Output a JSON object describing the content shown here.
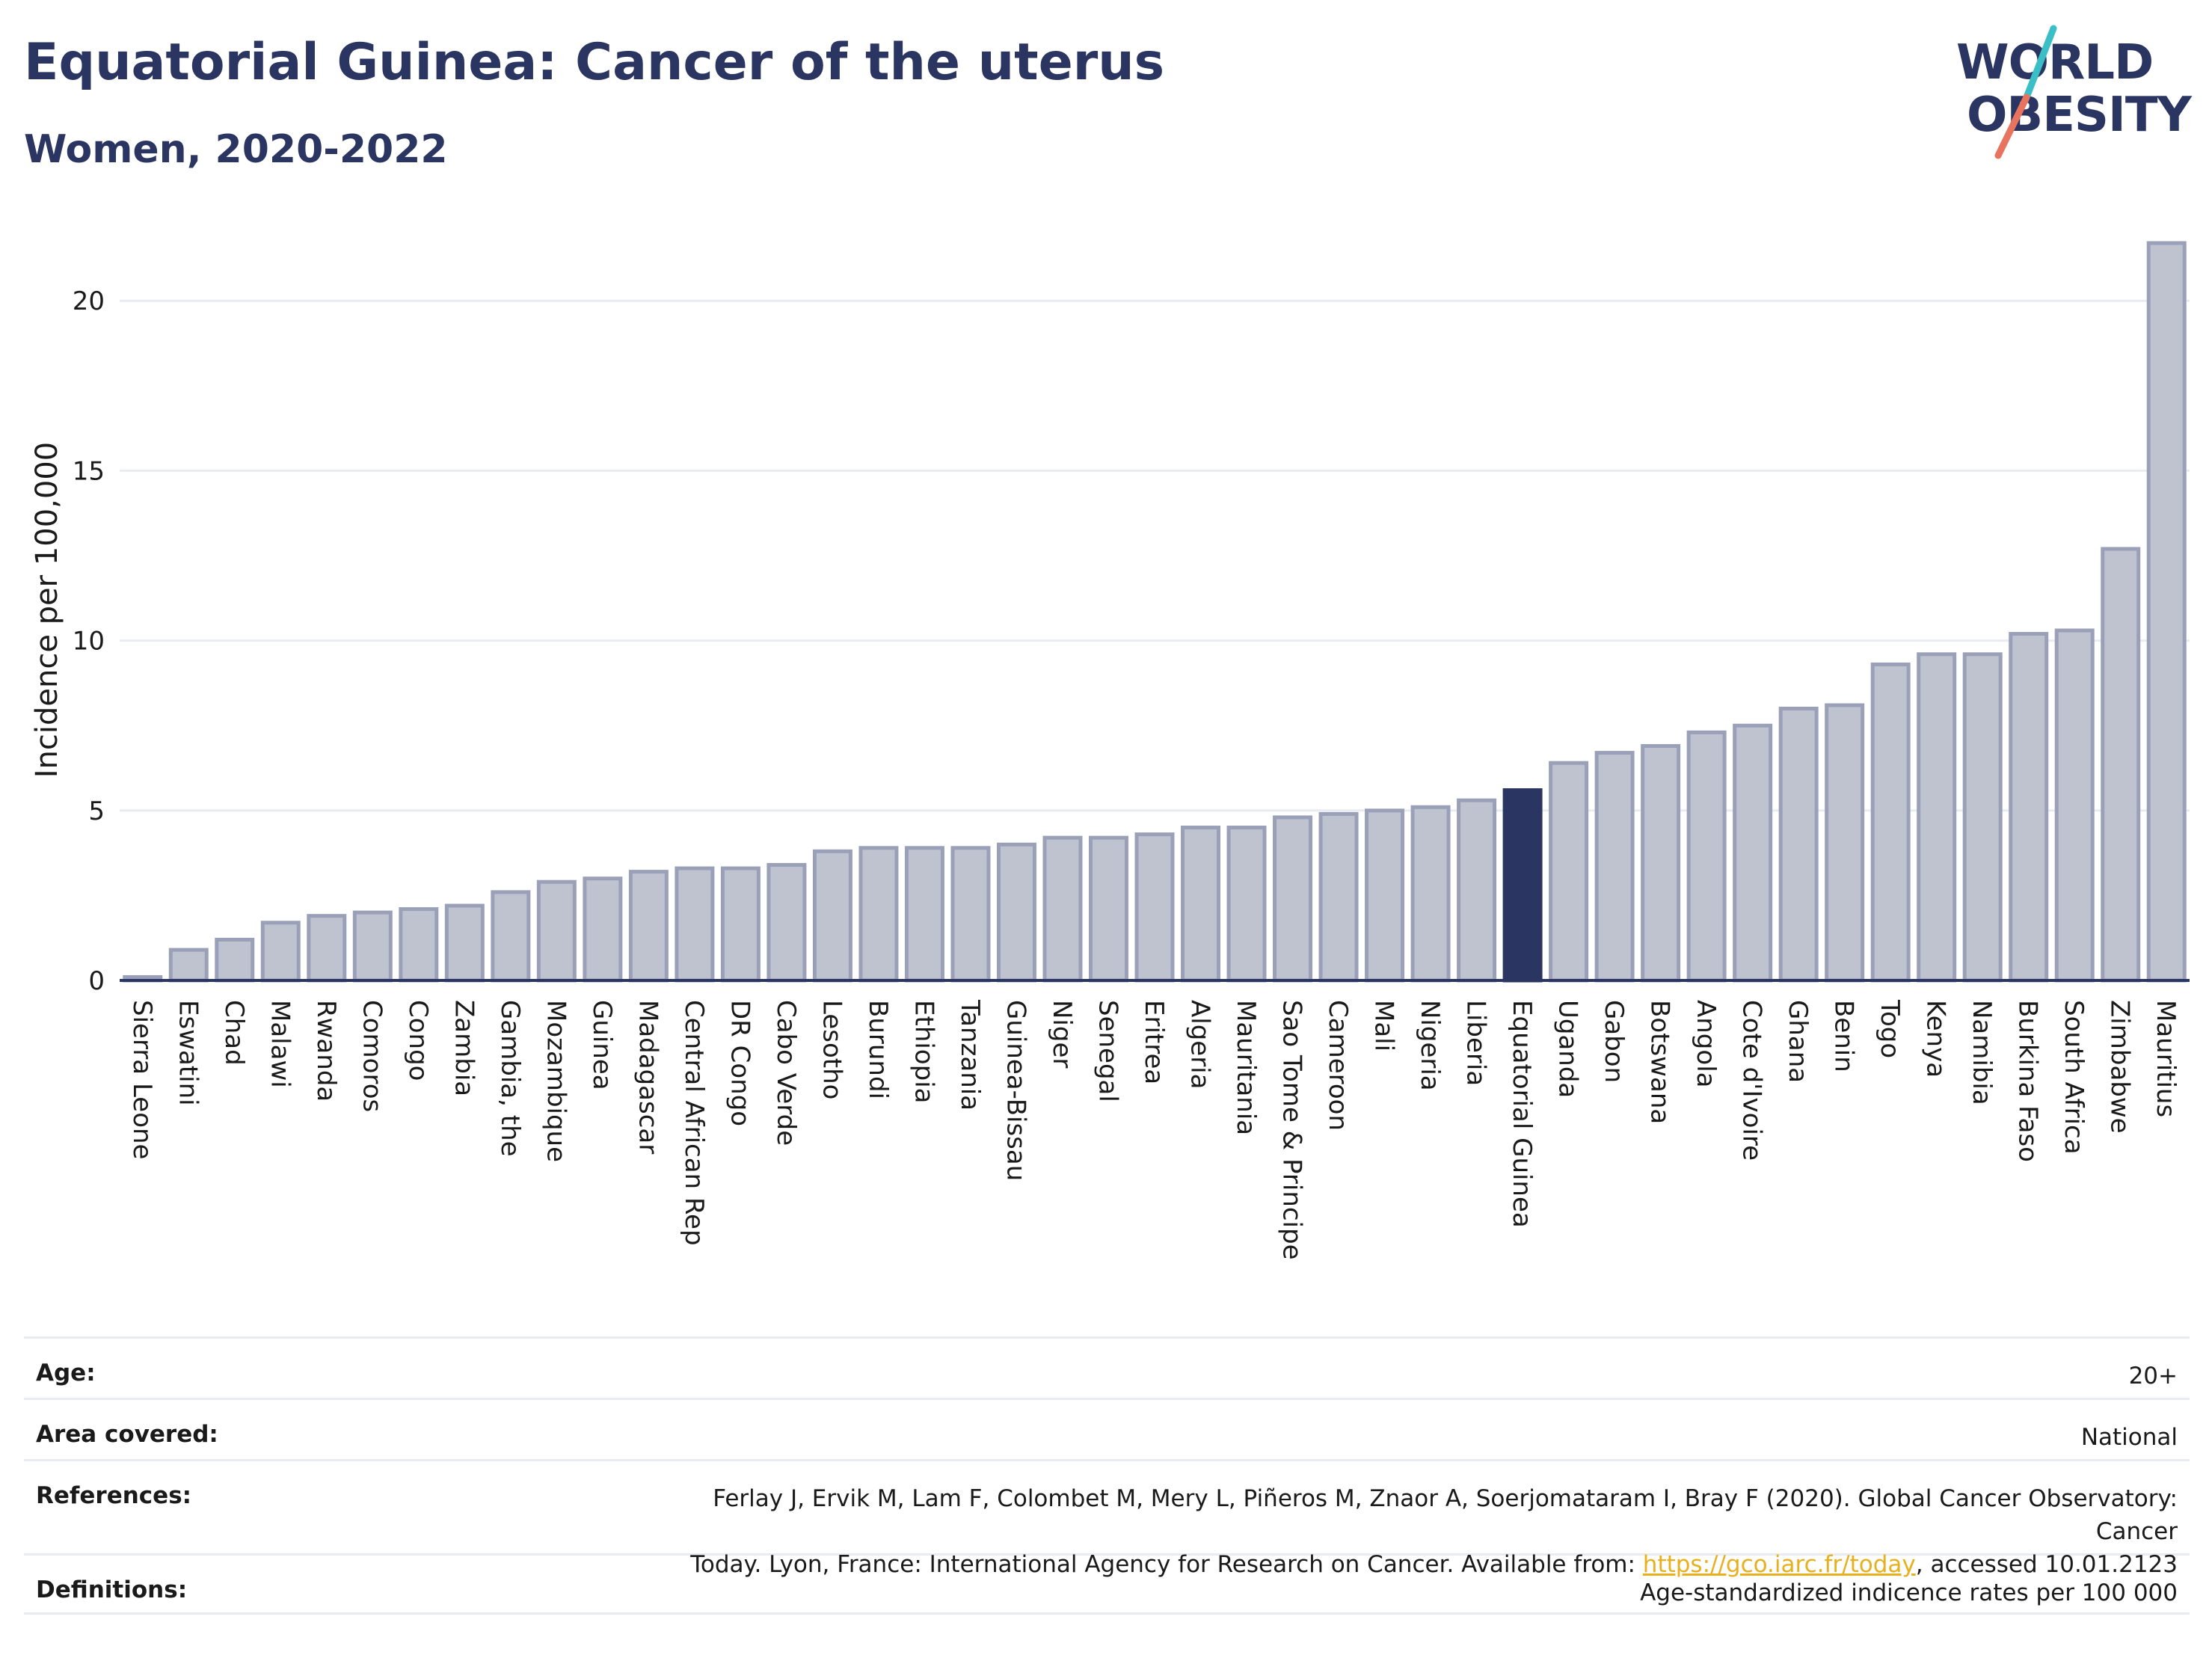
{
  "header": {
    "title": "Equatorial Guinea: Cancer of the uterus",
    "subtitle": "Women, 2020-2022"
  },
  "logo": {
    "line1": "WORLD",
    "line2": "OBESITY",
    "colors": {
      "text": "#2b3561",
      "slash_top": "#3bbfc6",
      "slash_bottom": "#e8735f"
    }
  },
  "chart_data": {
    "type": "bar",
    "ylabel": "Incidence per 100,000",
    "xlabel": "",
    "ylim": [
      0,
      22
    ],
    "yticks": [
      0,
      5,
      10,
      15,
      20
    ],
    "grid": true,
    "highlight": "Equatorial Guinea",
    "colors": {
      "bar": "#bfc3d0",
      "bar_edge": "#9aa0b8",
      "highlight": "#2b3561",
      "grid": "#e8ecf0",
      "axis": "#2b3561"
    },
    "categories": [
      "Sierra Leone",
      "Eswatini",
      "Chad",
      "Malawi",
      "Rwanda",
      "Comoros",
      "Congo",
      "Zambia",
      "Gambia, the",
      "Mozambique",
      "Guinea",
      "Madagascar",
      "Central African Rep",
      "DR Congo",
      "Cabo Verde",
      "Lesotho",
      "Burundi",
      "Ethiopia",
      "Tanzania",
      "Guinea-Bissau",
      "Niger",
      "Senegal",
      "Eritrea",
      "Algeria",
      "Mauritania",
      "Sao Tome & Principe",
      "Cameroon",
      "Mali",
      "Nigeria",
      "Liberia",
      "Equatorial Guinea",
      "Uganda",
      "Gabon",
      "Botswana",
      "Angola",
      "Cote d'Ivoire",
      "Ghana",
      "Benin",
      "Togo",
      "Kenya",
      "Namibia",
      "Burkina Faso",
      "South Africa",
      "Zimbabwe",
      "Mauritius"
    ],
    "values": [
      0.1,
      0.9,
      1.2,
      1.7,
      1.9,
      2.0,
      2.1,
      2.2,
      2.6,
      2.9,
      3.0,
      3.2,
      3.3,
      3.3,
      3.4,
      3.8,
      3.9,
      3.9,
      3.9,
      4.0,
      4.2,
      4.2,
      4.3,
      4.5,
      4.5,
      4.8,
      4.9,
      5.0,
      5.1,
      5.3,
      5.6,
      6.4,
      6.7,
      6.9,
      7.3,
      7.5,
      8.0,
      8.1,
      9.3,
      9.6,
      9.6,
      10.2,
      10.3,
      12.7,
      21.7
    ]
  },
  "meta": [
    {
      "label": "Age:",
      "value": "20+"
    },
    {
      "label": "Area covered:",
      "value": "National"
    },
    {
      "label": "References:",
      "value_line1": "Ferlay J, Ervik M, Lam F, Colombet M, Mery L, Piñeros M, Znaor A, Soerjomataram I, Bray F (2020). Global Cancer Observatory: Cancer",
      "value_line2_pre": "Today. Lyon, France: International Agency for Research on Cancer. Available from: ",
      "value_link": "https://gco.iarc.fr/today",
      "value_line2_post": ", accessed 10.01.2123"
    },
    {
      "label": "Definitions:",
      "value": "Age-standardized indicence rates per 100 000"
    }
  ]
}
